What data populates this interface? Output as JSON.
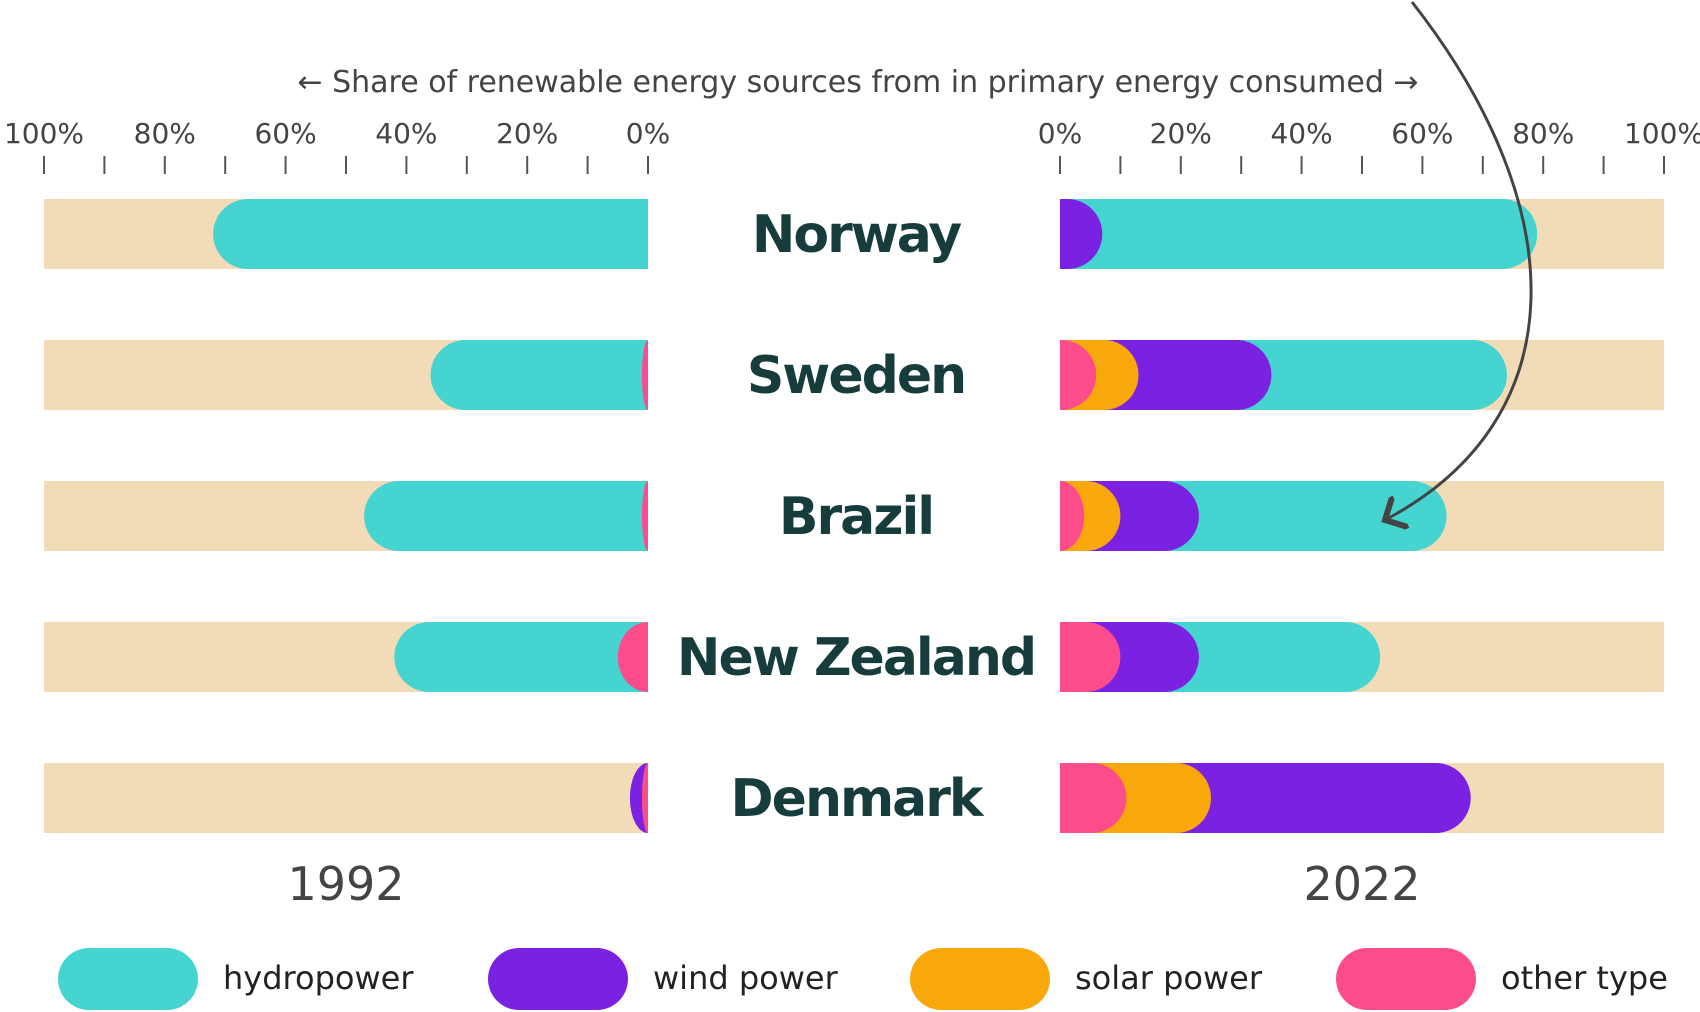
{
  "chart_data": {
    "type": "bar",
    "axis_title": "← Share of renewable energy sources from in primary energy consumed →",
    "tick_labels_left": [
      "100%",
      "80%",
      "60%",
      "40%",
      "20%",
      "0%"
    ],
    "tick_labels_right": [
      "0%",
      "20%",
      "40%",
      "60%",
      "80%",
      "100%"
    ],
    "xlim": [
      0,
      100
    ],
    "categories": [
      "Norway",
      "Sweden",
      "Brazil",
      "New Zealand",
      "Denmark"
    ],
    "periods": [
      "1992",
      "2022"
    ],
    "series": [
      {
        "name": "hydropower",
        "color": "#45d4d0",
        "values_1992": [
          72,
          35,
          46,
          37,
          0
        ],
        "values_2022": [
          72,
          39,
          41,
          30,
          0
        ]
      },
      {
        "name": "wind power",
        "color": "#7b22e2",
        "values_1992": [
          0,
          0,
          0,
          0,
          2
        ],
        "values_2022": [
          7,
          22,
          13,
          13,
          43
        ]
      },
      {
        "name": "solar power",
        "color": "#f9a80c",
        "values_1992": [
          0,
          0,
          0,
          0,
          0
        ],
        "values_2022": [
          0,
          7,
          6,
          0,
          14
        ]
      },
      {
        "name": "other type",
        "color": "#fc4c8c",
        "values_1992": [
          0,
          1,
          1,
          5,
          1
        ],
        "values_2022": [
          0,
          6,
          4,
          10,
          11
        ]
      }
    ],
    "background_color": "#f2dcb7",
    "annotation": "arrow from top-right pointing to Brazil 2022 bar"
  }
}
